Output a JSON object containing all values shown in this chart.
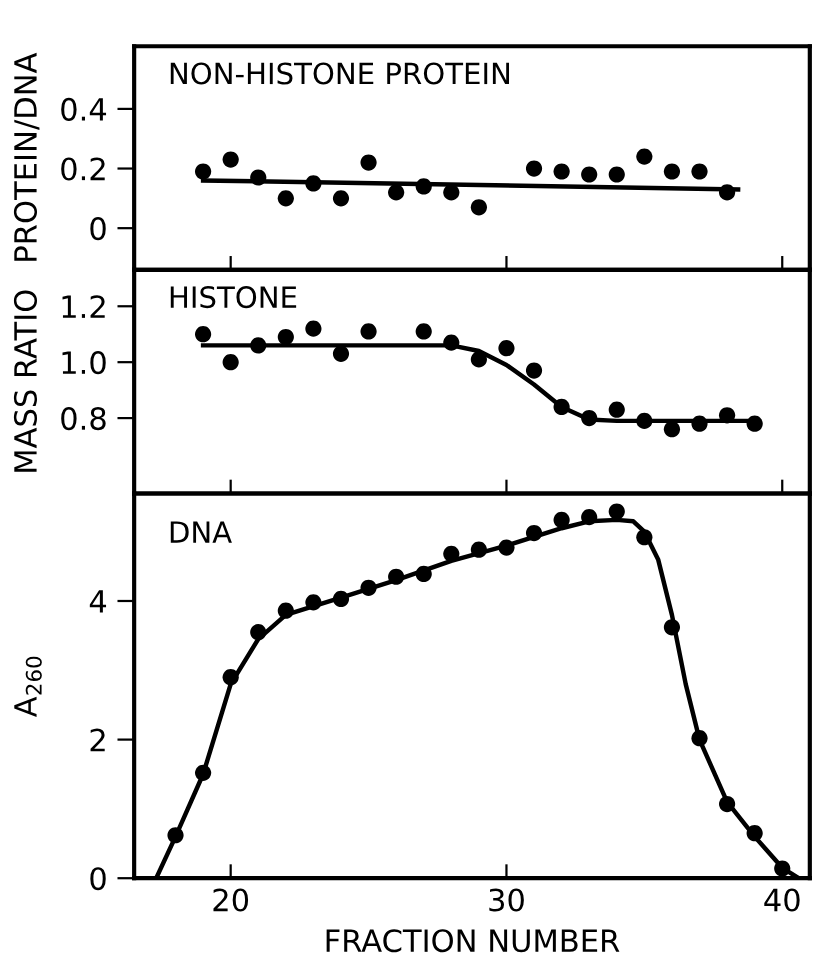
{
  "chart_data": [
    {
      "type": "scatter",
      "title": "NON-HISTONE PROTEIN",
      "ylabel": "PROTEIN/DNA",
      "xlim": [
        16.5,
        41
      ],
      "xticks": [
        20,
        30,
        40
      ],
      "ylim": [
        -0.14,
        0.61
      ],
      "yticks": [
        {
          "value": 0,
          "label": "0"
        },
        0.2,
        0.4
      ],
      "tick_labels": "y",
      "grid": false,
      "legend": false,
      "series": [
        {
          "marker": "circle",
          "color": "#000000",
          "x": [
            19,
            20,
            21,
            22,
            23,
            24,
            25,
            26,
            27,
            28,
            29,
            31,
            32,
            33,
            34,
            35,
            36,
            37,
            38
          ],
          "values": [
            0.19,
            0.23,
            0.17,
            0.1,
            0.15,
            0.1,
            0.22,
            0.12,
            0.14,
            0.12,
            0.07,
            0.2,
            0.19,
            0.18,
            0.18,
            0.24,
            0.19,
            0.19,
            0.12
          ]
        },
        {
          "type": "line",
          "marker": "none",
          "color": "#000000",
          "x": [
            19,
            38.4
          ],
          "values": [
            0.16,
            0.13
          ]
        }
      ]
    },
    {
      "type": "scatter",
      "title": "HISTONE",
      "ylabel": "MASS RATIO",
      "xlim": [
        16.5,
        41
      ],
      "xticks": [
        20,
        30,
        40
      ],
      "ylim": [
        0.53,
        1.33
      ],
      "yticks": [
        0.8,
        {
          "value": 1.0,
          "label": "1.0"
        },
        1.2
      ],
      "tick_labels": "y",
      "grid": false,
      "legend": false,
      "series": [
        {
          "marker": "circle",
          "color": "#000000",
          "x": [
            19,
            20,
            21,
            22,
            23,
            24,
            25,
            27,
            28,
            29,
            30,
            31,
            32,
            33,
            34,
            35,
            36,
            37,
            38,
            39
          ],
          "values": [
            1.1,
            1.0,
            1.06,
            1.09,
            1.12,
            1.03,
            1.11,
            1.11,
            1.07,
            1.01,
            1.05,
            0.97,
            0.84,
            0.8,
            0.83,
            0.79,
            0.76,
            0.78,
            0.81,
            0.78
          ]
        },
        {
          "type": "line",
          "marker": "none",
          "color": "#000000",
          "x": [
            19,
            28,
            29,
            30,
            31,
            32,
            33,
            34,
            39
          ],
          "values": [
            1.06,
            1.06,
            1.04,
            0.99,
            0.92,
            0.84,
            0.795,
            0.79,
            0.79
          ]
        }
      ]
    },
    {
      "type": "scatter",
      "title": "DNA",
      "ylabel": "A$_{260}$",
      "xlabel": "FRACTION NUMBER",
      "xlim": [
        16.5,
        41
      ],
      "xticks": [
        20,
        30,
        40
      ],
      "ylim": [
        0,
        5.55
      ],
      "yticks": [
        0,
        2,
        4
      ],
      "grid": false,
      "legend": false,
      "series": [
        {
          "marker": "circle",
          "color": "#000000",
          "x": [
            18,
            19,
            20,
            21,
            22,
            23,
            24,
            25,
            26,
            27,
            28,
            29,
            30,
            31,
            32,
            33,
            34,
            35,
            36,
            37,
            38,
            39,
            40
          ],
          "values": [
            0.62,
            1.52,
            2.9,
            3.55,
            3.86,
            3.98,
            4.03,
            4.19,
            4.35,
            4.39,
            4.68,
            4.74,
            4.77,
            4.98,
            5.17,
            5.21,
            5.29,
            4.92,
            3.62,
            2.02,
            1.07,
            0.65,
            0.14
          ]
        },
        {
          "type": "line",
          "marker": "none",
          "color": "#000000",
          "x": [
            17.3,
            18,
            19,
            20,
            21,
            22,
            24,
            26,
            28,
            30,
            32,
            33,
            34,
            34.6,
            35,
            35.5,
            36,
            36.5,
            37,
            38,
            39,
            40,
            40.6
          ],
          "values": [
            0,
            0.6,
            1.5,
            2.8,
            3.45,
            3.8,
            4.05,
            4.3,
            4.58,
            4.8,
            5.05,
            5.15,
            5.17,
            5.15,
            5.0,
            4.6,
            3.8,
            2.8,
            2.0,
            1.1,
            0.6,
            0.15,
            0
          ]
        }
      ]
    }
  ]
}
